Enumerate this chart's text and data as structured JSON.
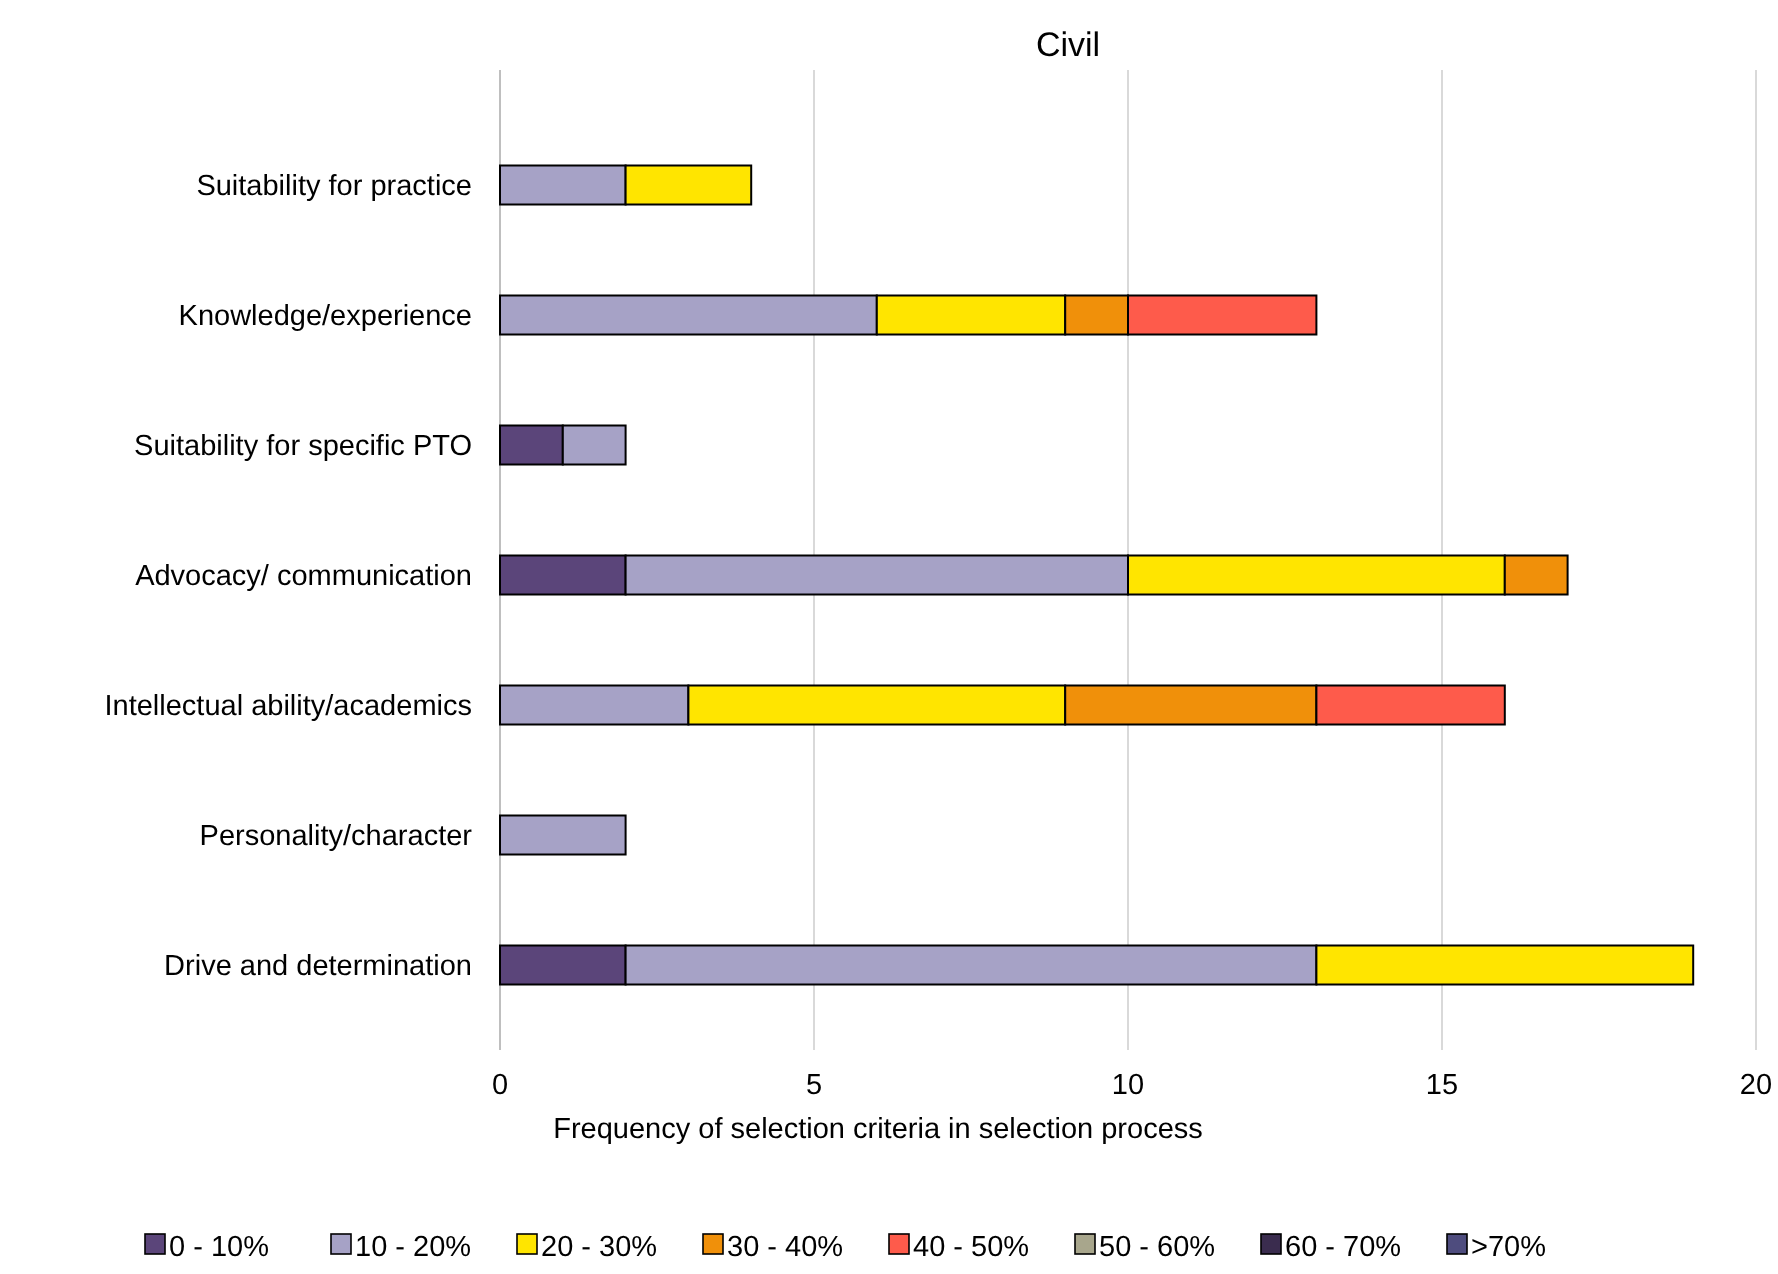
{
  "chart_data": {
    "type": "bar",
    "title": "Civil",
    "xlabel": "Frequency of selection criteria in selection process",
    "orientation": "horizontal",
    "stacked": true,
    "categories": [
      "Suitability for practice",
      "Knowledge/experience",
      "Suitability for specific PTO",
      "Advocacy/ communication",
      "Intellectual ability/academics",
      "Personality/character",
      "Drive and determination"
    ],
    "series": [
      {
        "name": "0 - 10%",
        "color": "#5b457a",
        "values": [
          0,
          0,
          1,
          2,
          0,
          0,
          2
        ]
      },
      {
        "name": "10 - 20%",
        "color": "#a6a2c6",
        "values": [
          2,
          6,
          1,
          8,
          3,
          2,
          11
        ]
      },
      {
        "name": "20 - 30%",
        "color": "#ffe500",
        "values": [
          2,
          3,
          0,
          6,
          6,
          0,
          6
        ]
      },
      {
        "name": "30 - 40%",
        "color": "#f0900a",
        "values": [
          0,
          1,
          0,
          1,
          4,
          0,
          0
        ]
      },
      {
        "name": "40 - 50%",
        "color": "#fe5b4b",
        "values": [
          0,
          3,
          0,
          0,
          3,
          0,
          0
        ]
      },
      {
        "name": "50 - 60%",
        "color": "#a8a68c",
        "values": [
          0,
          0,
          0,
          0,
          0,
          0,
          0
        ]
      },
      {
        "name": "60 - 70%",
        "color": "#3a2c4e",
        "values": [
          0,
          0,
          0,
          0,
          0,
          0,
          0
        ]
      },
      {
        "name": ">70%",
        "color": "#4e4c7e",
        "values": [
          0,
          0,
          0,
          0,
          0,
          0,
          0
        ]
      }
    ],
    "xlim": [
      0,
      20
    ],
    "xticks": [
      0,
      5,
      10,
      15,
      20
    ],
    "grid": "x",
    "legend": "bottom"
  }
}
